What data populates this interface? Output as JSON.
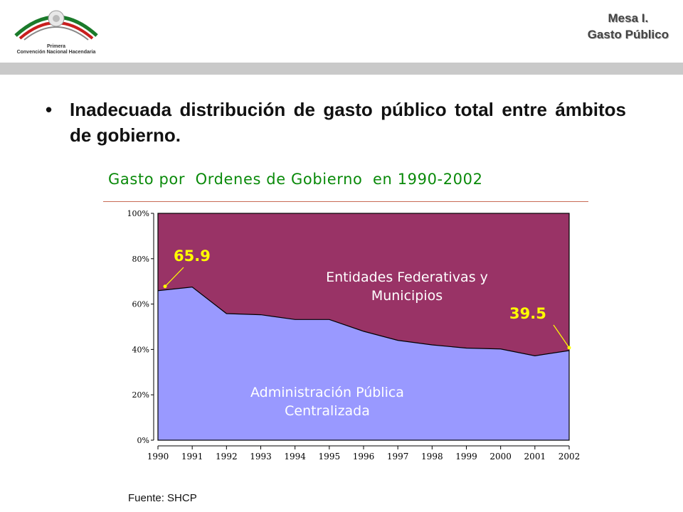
{
  "header": {
    "logo_caption_line1": "Primera",
    "logo_caption_line2": "Convención Nacional Hacendaria",
    "mesa_title": "Mesa I.",
    "mesa_subtitle": "Gasto Público"
  },
  "bullet": {
    "symbol": "•",
    "text": "Inadecuada distribución de gasto público total entre ámbitos de gobierno."
  },
  "chart_data": {
    "type": "area",
    "title": "Gasto por  Ordenes de Gobierno  en 1990-2002",
    "x": [
      "1990",
      "1991",
      "1992",
      "1993",
      "1994",
      "1995",
      "1996",
      "1997",
      "1998",
      "1999",
      "2000",
      "2001",
      "2002"
    ],
    "y_ticks": [
      "0%",
      "20%",
      "40%",
      "60%",
      "80%",
      "100%"
    ],
    "ylim": [
      0,
      100
    ],
    "series": [
      {
        "name": "Administración Pública Centralizada",
        "label_line1": "Administración Pública",
        "label_line2": "Centralizada",
        "color": "#9999ff",
        "values": [
          65.9,
          67.5,
          55.8,
          55.3,
          53.2,
          53.2,
          48.0,
          44.0,
          42.0,
          40.6,
          40.2,
          37.2,
          39.5
        ]
      },
      {
        "name": "Entidades Federativas y Municipios",
        "label_line1": "Entidades Federativas y",
        "label_line2": "Municipios",
        "color": "#993366",
        "values": [
          34.1,
          32.5,
          44.2,
          44.7,
          46.8,
          46.8,
          52.0,
          56.0,
          58.0,
          59.4,
          59.8,
          62.8,
          60.5
        ]
      }
    ],
    "annotations": [
      {
        "text": "65.9",
        "x": "1990",
        "y": 65.9
      },
      {
        "text": "39.5",
        "x": "2002",
        "y": 39.5
      }
    ],
    "annotation_color": "#ffff00",
    "grid": false,
    "legend": "none"
  },
  "source": "Fuente: SHCP"
}
